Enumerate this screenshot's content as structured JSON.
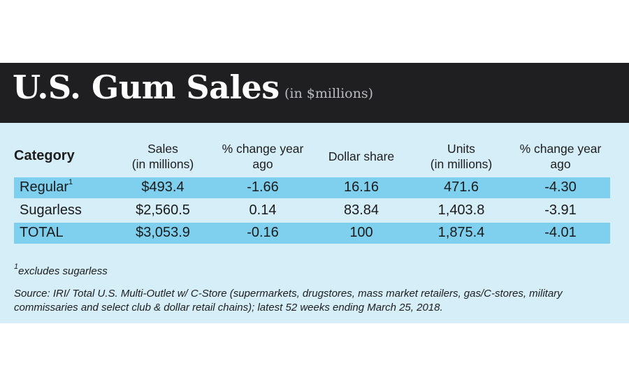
{
  "header": {
    "title": "U.S. Gum Sales",
    "subtitle": "(in $millions)"
  },
  "chart_data": {
    "type": "table",
    "title": "U.S. Gum Sales",
    "subtitle": "(in $millions)",
    "columns": [
      {
        "line1": "Category",
        "line2": ""
      },
      {
        "line1": "Sales",
        "line2": "(in millions)"
      },
      {
        "line1": "% change year",
        "line2": "ago"
      },
      {
        "line1": "Dollar share",
        "line2": ""
      },
      {
        "line1": "Units",
        "line2": "(in millions)"
      },
      {
        "line1": "% change year",
        "line2": "ago"
      }
    ],
    "rows": [
      {
        "category": "Regular",
        "footnote_mark": "1",
        "sales": "$493.4",
        "pct_change_sales": "-1.66",
        "dollar_share": "16.16",
        "units": "471.6",
        "pct_change_units": "-4.30"
      },
      {
        "category": "Sugarless",
        "footnote_mark": "",
        "sales": "$2,560.5",
        "pct_change_sales": "0.14",
        "dollar_share": "83.84",
        "units": "1,403.8",
        "pct_change_units": "-3.91"
      },
      {
        "category": "TOTAL",
        "footnote_mark": "",
        "sales": "$3,053.9",
        "pct_change_sales": "-0.16",
        "dollar_share": "100",
        "units": "1,875.4",
        "pct_change_units": "-4.01"
      }
    ]
  },
  "notes": {
    "footnote_mark": "1",
    "footnote": "excludes sugarless",
    "source": "Source: IRI/ Total U.S. Multi-Outlet w/ C-Store (supermarkets, drugstores, mass market retailers, gas/C-stores, military commissaries and select club & dollar retail chains); latest 52 weeks ending March 25, 2018."
  },
  "colors": {
    "header_bg": "#1f1f21",
    "card_bg": "#d6eef8",
    "row_highlight": "#7ed0ee"
  }
}
